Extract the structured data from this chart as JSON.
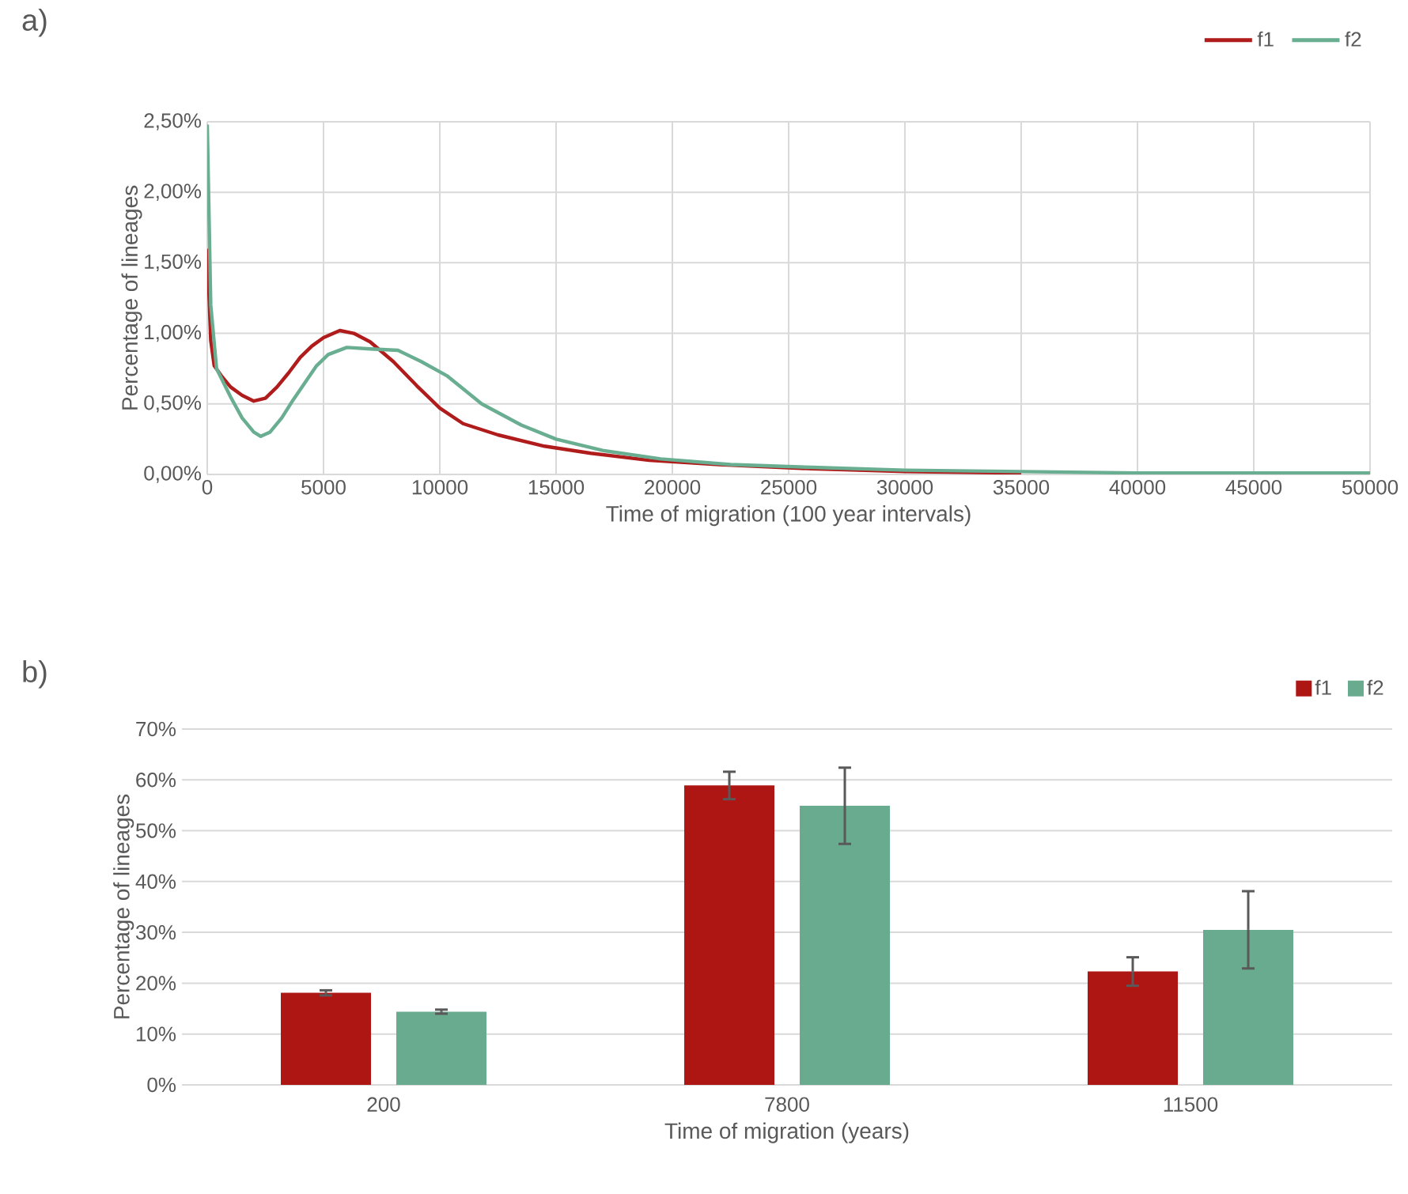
{
  "chart_data": [
    {
      "type": "line",
      "title": "a)",
      "xlabel": "Time of migration (100 year intervals)",
      "ylabel": "Percentage of lineages",
      "xlim": [
        0,
        50000
      ],
      "xticks": [
        0,
        5000,
        10000,
        15000,
        20000,
        25000,
        30000,
        35000,
        40000,
        45000,
        50000
      ],
      "ylim": [
        0,
        2.5
      ],
      "yticks": [
        {
          "value": 0,
          "label": "0,00%"
        },
        {
          "value": 0.5,
          "label": "0,50%"
        },
        {
          "value": 1,
          "label": "1,00%"
        },
        {
          "value": 1.5,
          "label": "1,50%"
        },
        {
          "value": 2,
          "label": "2,00%"
        },
        {
          "value": 2.5,
          "label": "2,50%"
        }
      ],
      "grid": true,
      "legend": "top right",
      "series": [
        {
          "name": "f1",
          "color": "#b01b1b",
          "x": [
            0,
            150,
            300,
            600,
            1000,
            1500,
            2000,
            2500,
            3000,
            3500,
            4000,
            4500,
            5000,
            5700,
            6300,
            7000,
            8000,
            9000,
            10000,
            11000,
            12500,
            14500,
            16500,
            19000,
            22000,
            26000,
            30000,
            35000
          ],
          "values": [
            1.6,
            0.95,
            0.77,
            0.7,
            0.62,
            0.56,
            0.52,
            0.54,
            0.62,
            0.72,
            0.83,
            0.91,
            0.97,
            1.02,
            1.0,
            0.94,
            0.8,
            0.63,
            0.47,
            0.36,
            0.28,
            0.2,
            0.15,
            0.1,
            0.07,
            0.04,
            0.02,
            0.01
          ]
        },
        {
          "name": "f2",
          "color": "#6aae92",
          "x": [
            0,
            150,
            400,
            1000,
            1500,
            2000,
            2300,
            2700,
            3200,
            3700,
            4200,
            4700,
            5200,
            6000,
            7000,
            8200,
            9200,
            10300,
            11800,
            13500,
            15000,
            17000,
            19500,
            22500,
            26000,
            30000,
            35000,
            40000,
            45000,
            50000
          ],
          "values": [
            2.48,
            1.2,
            0.75,
            0.55,
            0.4,
            0.3,
            0.27,
            0.3,
            0.4,
            0.53,
            0.65,
            0.77,
            0.85,
            0.9,
            0.89,
            0.88,
            0.8,
            0.7,
            0.5,
            0.35,
            0.25,
            0.17,
            0.11,
            0.07,
            0.05,
            0.03,
            0.02,
            0.01,
            0.01,
            0.01
          ]
        }
      ]
    },
    {
      "type": "bar",
      "title": "b)",
      "xlabel": "Time of migration (years)",
      "ylabel": "Percentage of lineages",
      "categories": [
        "200",
        "7800",
        "11500"
      ],
      "ylim": [
        0,
        70
      ],
      "yticks": [
        {
          "value": 0,
          "label": "0%"
        },
        {
          "value": 10,
          "label": "10%"
        },
        {
          "value": 20,
          "label": "20%"
        },
        {
          "value": 30,
          "label": "30%"
        },
        {
          "value": 40,
          "label": "40%"
        },
        {
          "value": 50,
          "label": "50%"
        },
        {
          "value": 60,
          "label": "60%"
        },
        {
          "value": 70,
          "label": "70%"
        }
      ],
      "grid": "y",
      "legend": "top right",
      "series": [
        {
          "name": "f1",
          "color": "#ae1614",
          "values": [
            18.1,
            58.9,
            22.3
          ],
          "errors": [
            0.5,
            2.7,
            2.8
          ]
        },
        {
          "name": "f2",
          "color": "#69ab8e",
          "values": [
            14.4,
            54.9,
            30.5
          ],
          "errors": [
            0.4,
            7.5,
            7.6
          ]
        }
      ]
    }
  ]
}
